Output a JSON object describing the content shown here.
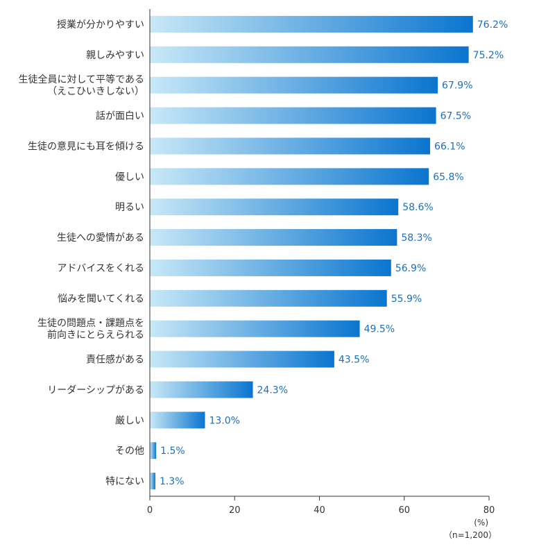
{
  "chart_data": {
    "type": "bar",
    "orientation": "horizontal",
    "categories": [
      [
        "授業が分かりやすい"
      ],
      [
        "親しみやすい"
      ],
      [
        "生徒全員に対して平等である",
        "（えこひいきしない）"
      ],
      [
        "話が面白い"
      ],
      [
        "生徒の意見にも耳を傾ける"
      ],
      [
        "優しい"
      ],
      [
        "明るい"
      ],
      [
        "生徒への愛情がある"
      ],
      [
        "アドバイスをくれる"
      ],
      [
        "悩みを聞いてくれる"
      ],
      [
        "生徒の問題点・課題点を",
        "前向きにとらえられる"
      ],
      [
        "責任感がある"
      ],
      [
        "リーダーシップがある"
      ],
      [
        "厳しい"
      ],
      [
        "その他"
      ],
      [
        "特にない"
      ]
    ],
    "values": [
      76.2,
      75.2,
      67.9,
      67.5,
      66.1,
      65.8,
      58.6,
      58.3,
      56.9,
      55.9,
      49.5,
      43.5,
      24.3,
      13.0,
      1.5,
      1.3
    ],
    "value_labels": [
      "76.2%",
      "75.2%",
      "67.9%",
      "67.5%",
      "66.1%",
      "65.8%",
      "58.6%",
      "58.3%",
      "56.9%",
      "55.9%",
      "49.5%",
      "43.5%",
      "24.3%",
      "13.0%",
      "1.5%",
      "1.3%"
    ],
    "xlim": [
      0,
      80
    ],
    "xticks": [
      "0",
      "20",
      "40",
      "60",
      "80"
    ],
    "unit_label": "(%)",
    "sample_label": "（n=1,200）",
    "title": "",
    "xlabel": "",
    "ylabel": "",
    "colors": {
      "bar_start": "#c8e8f7",
      "bar_end": "#0a75cf",
      "value_text": "#1a6fc0",
      "axis": "#333333"
    }
  }
}
